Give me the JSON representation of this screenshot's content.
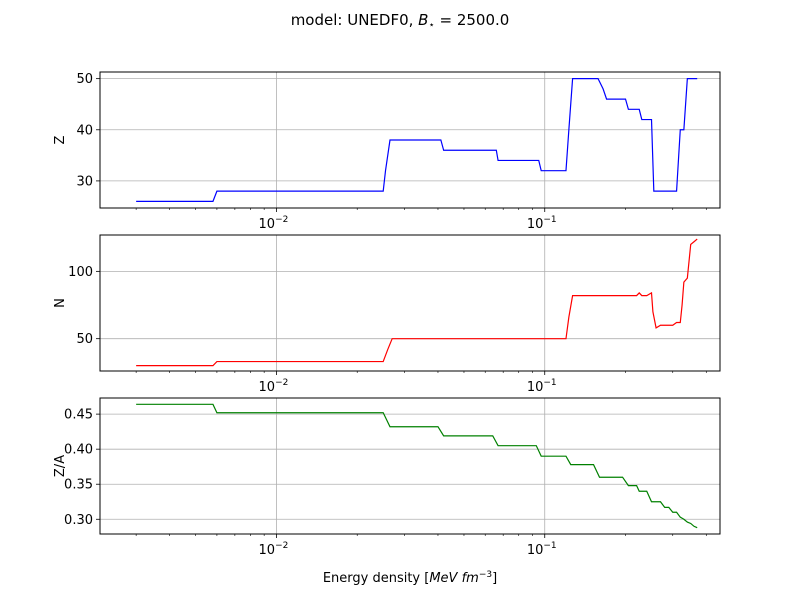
{
  "chart_data": {
    "type": "line",
    "title_parts": {
      "prefix": "model: UNEDF0, ",
      "var": "B",
      "sub": "⋆",
      "suffix": " = 2500.0"
    },
    "xlabel_parts": {
      "prefix": "Energy density [",
      "math": "MeV fm",
      "sup": "−3",
      "suffix": "]"
    },
    "xscale": "log",
    "xlim": [
      0.0022,
      0.45
    ],
    "xticks": [
      {
        "value": 0.01,
        "base": "10",
        "exp": "−2"
      },
      {
        "value": 0.1,
        "base": "10",
        "exp": "−1"
      }
    ],
    "grid": true,
    "panels": [
      {
        "ylabel": "Z",
        "color": "#0000ff",
        "ylim": [
          24.7,
          51.3
        ],
        "yticks": [
          30,
          40,
          50
        ],
        "ytick_labels": [
          "30",
          "40",
          "50"
        ],
        "x": [
          0.003,
          0.0058,
          0.006,
          0.025,
          0.0255,
          0.0265,
          0.041,
          0.042,
          0.066,
          0.067,
          0.095,
          0.097,
          0.12,
          0.123,
          0.127,
          0.158,
          0.165,
          0.17,
          0.2,
          0.205,
          0.225,
          0.23,
          0.25,
          0.255,
          0.31,
          0.32,
          0.33,
          0.34,
          0.37
        ],
        "y": [
          26,
          26,
          28,
          28,
          32,
          38,
          38,
          36,
          36,
          34,
          34,
          32,
          32,
          40,
          50,
          50,
          48,
          46,
          46,
          44,
          44,
          42,
          42,
          28,
          28,
          40,
          40,
          50,
          50
        ]
      },
      {
        "ylabel": "N",
        "color": "#ff0000",
        "ylim": [
          26,
          127
        ],
        "yticks": [
          50,
          100
        ],
        "ytick_labels": [
          "50",
          "100"
        ],
        "x": [
          0.003,
          0.0058,
          0.006,
          0.025,
          0.026,
          0.027,
          0.12,
          0.123,
          0.127,
          0.22,
          0.225,
          0.23,
          0.24,
          0.25,
          0.253,
          0.26,
          0.27,
          0.3,
          0.31,
          0.32,
          0.325,
          0.33,
          0.34,
          0.35,
          0.36,
          0.37
        ],
        "y": [
          30,
          30,
          33,
          33,
          42,
          50,
          50,
          66,
          82,
          82,
          84,
          82,
          82,
          84,
          70,
          58,
          60,
          60,
          62,
          62,
          75,
          92,
          95,
          120,
          122,
          124
        ]
      },
      {
        "ylabel": "Z/A",
        "color": "#008000",
        "ylim": [
          0.279,
          0.473
        ],
        "yticks": [
          0.3,
          0.35,
          0.4,
          0.45
        ],
        "ytick_labels": [
          "0.30",
          "0.35",
          "0.40",
          "0.45"
        ],
        "x": [
          0.003,
          0.0058,
          0.006,
          0.025,
          0.0265,
          0.04,
          0.042,
          0.064,
          0.067,
          0.093,
          0.097,
          0.12,
          0.125,
          0.152,
          0.16,
          0.195,
          0.205,
          0.22,
          0.225,
          0.24,
          0.25,
          0.27,
          0.28,
          0.29,
          0.3,
          0.31,
          0.32,
          0.33,
          0.34,
          0.35,
          0.36,
          0.37
        ],
        "y": [
          0.464,
          0.464,
          0.452,
          0.452,
          0.432,
          0.432,
          0.419,
          0.419,
          0.405,
          0.405,
          0.39,
          0.39,
          0.378,
          0.378,
          0.36,
          0.36,
          0.348,
          0.348,
          0.34,
          0.34,
          0.325,
          0.325,
          0.317,
          0.317,
          0.31,
          0.31,
          0.303,
          0.3,
          0.296,
          0.294,
          0.29,
          0.288
        ]
      }
    ]
  }
}
